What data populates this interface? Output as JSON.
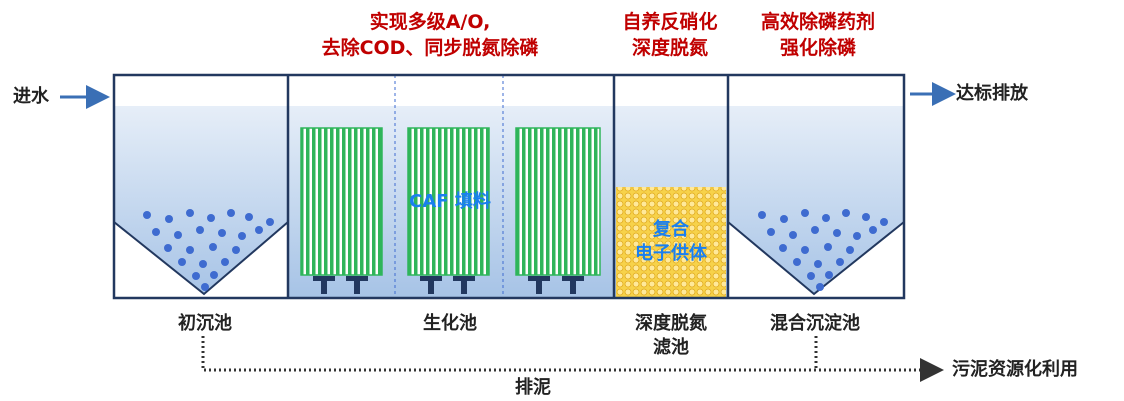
{
  "headers": {
    "bio_line1": "实现多级A/O,",
    "bio_line2": "去除COD、同步脱氮除磷",
    "denit_line1": "自养反硝化",
    "denit_line2": "深度脱氮",
    "phos_line1": "高效除磷药剂",
    "phos_line2": "强化除磷"
  },
  "flow": {
    "inlet": "进水",
    "outlet": "达标排放",
    "sludge_discharge": "排泥",
    "sludge_use": "污泥资源化利用"
  },
  "tanks": {
    "primary": "初沉池",
    "bio": "生化池",
    "deep_line1": "深度脱氮",
    "deep_line2": "滤池",
    "mixing": "混合沉淀池"
  },
  "media": {
    "caf": "CAF 填料",
    "donor_line1": "复合",
    "donor_line2": "电子供体"
  },
  "colors": {
    "outline": "#22385f",
    "water_top": "#dce8f6",
    "water_bottom": "#a9c6e8",
    "media_green": "#2fb55a",
    "donor_yellow": "#f2c12e",
    "accent_red": "#c00000",
    "accent_blue": "#1a7ff0",
    "arrow_blue": "#3a6fb5"
  }
}
